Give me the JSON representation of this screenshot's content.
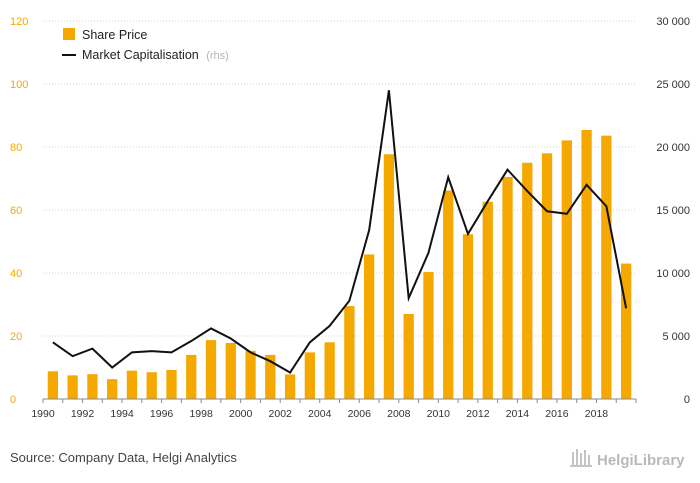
{
  "chart_data": {
    "type": "bar+line",
    "legend": {
      "position": "top-left",
      "items": [
        {
          "name": "Share Price",
          "color": "#f5a800",
          "marker": "square"
        },
        {
          "name": "Market Capitalisation",
          "note": "(rhs)",
          "color": "#111111",
          "marker": "line"
        }
      ]
    },
    "x": [
      1990,
      1991,
      1992,
      1993,
      1994,
      1995,
      1996,
      1997,
      1998,
      1999,
      2000,
      2001,
      2002,
      2003,
      2004,
      2005,
      2006,
      2007,
      2008,
      2009,
      2010,
      2011,
      2012,
      2013,
      2014,
      2015,
      2016,
      2017,
      2018,
      2019
    ],
    "x_tick_labels": [
      "1990",
      "1992",
      "1994",
      "1996",
      "1998",
      "2000",
      "2002",
      "2004",
      "2006",
      "2008",
      "2010",
      "2012",
      "2014",
      "2016",
      "2018"
    ],
    "series": [
      {
        "name": "Share Price",
        "type": "bar",
        "axis": "left",
        "color": "#f5a800",
        "values": [
          8.8,
          7.5,
          7.9,
          6.3,
          9.0,
          8.5,
          9.2,
          14.0,
          18.7,
          17.8,
          15.3,
          14.0,
          7.8,
          14.8,
          18.0,
          29.5,
          45.9,
          77.7,
          27.0,
          40.3,
          66.2,
          52.3,
          62.6,
          70.5,
          75.0,
          78.0,
          82.1,
          85.4,
          83.6,
          43.0
        ]
      },
      {
        "name": "Market Capitalisation",
        "type": "line",
        "axis": "right",
        "color": "#111111",
        "values": [
          4500,
          3400,
          4000,
          2500,
          3700,
          3800,
          3700,
          4600,
          5600,
          4800,
          3700,
          3000,
          2100,
          4500,
          5800,
          7800,
          13400,
          24500,
          8000,
          11600,
          17600,
          13100,
          15700,
          18200,
          16500,
          14900,
          14700,
          17000,
          15300,
          7200
        ]
      }
    ],
    "y_left": {
      "min": 0,
      "max": 120,
      "ticks": [
        "0",
        "20",
        "40",
        "60",
        "80",
        "100",
        "120"
      ],
      "color": "#f5a800"
    },
    "y_right": {
      "min": 0,
      "max": 30000,
      "ticks": [
        "0",
        "5 000",
        "10 000",
        "15 000",
        "20 000",
        "25 000",
        "30 000"
      ]
    },
    "grid": "horizontal dotted"
  },
  "footer": {
    "source": "Source: Company Data, Helgi Analytics",
    "brand": "HelgiLibrary"
  }
}
